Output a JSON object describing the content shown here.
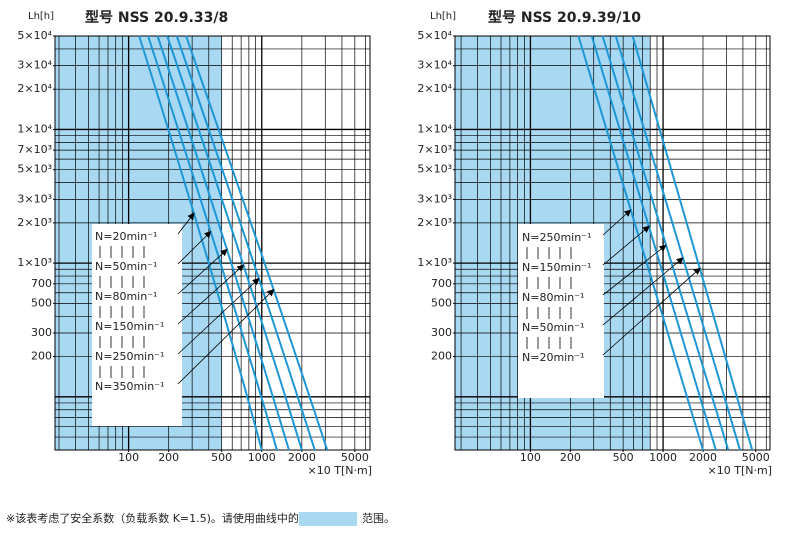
{
  "chart_data": [
    {
      "type": "line",
      "title": "型号 NSS 20.9.33/8",
      "ylabel": "Lh[h]",
      "xlabel": "×10 T[N·m]",
      "log_scale": true,
      "xlim": [
        28,
        6500
      ],
      "ylim": [
        40,
        50000
      ],
      "xticks": [
        100,
        200,
        500,
        1000,
        2000,
        5000
      ],
      "yticks": [
        {
          "value": 50000,
          "label": "5×10⁴"
        },
        {
          "value": 30000,
          "label": "3×10⁴"
        },
        {
          "value": 20000,
          "label": "2×10⁴"
        },
        {
          "value": 10000,
          "label": "1×10⁴"
        },
        {
          "value": 7000,
          "label": "7×10³"
        },
        {
          "value": 5000,
          "label": "5×10³"
        },
        {
          "value": 3000,
          "label": "3×10³"
        },
        {
          "value": 2000,
          "label": "2×10³"
        },
        {
          "value": 1000,
          "label": "1×10³"
        },
        700,
        500,
        300,
        200
      ],
      "xgrid": [
        30,
        40,
        50,
        60,
        70,
        80,
        90,
        100,
        200,
        300,
        400,
        500,
        600,
        700,
        800,
        900,
        1000,
        2000,
        3000,
        4000,
        5000,
        6000
      ],
      "ygrid": [
        40,
        50,
        60,
        70,
        80,
        90,
        100,
        200,
        300,
        400,
        500,
        600,
        700,
        800,
        900,
        1000,
        2000,
        3000,
        4000,
        5000,
        6000,
        7000,
        8000,
        9000,
        10000,
        20000,
        30000,
        40000,
        50000
      ],
      "shade_color": "#a8d8f2",
      "shade_xlim": [
        28,
        500
      ],
      "series": [
        {
          "name": "N=20min⁻¹",
          "color": "#1d97d5",
          "x": [
            120,
            400,
            1000
          ],
          "values": [
            50000,
            1000,
            40
          ]
        },
        {
          "name": "N=50min⁻¹",
          "color": "#1d97d5",
          "x": [
            140,
            490,
            1300
          ],
          "values": [
            50000,
            1000,
            40
          ]
        },
        {
          "name": "N=80min⁻¹",
          "color": "#1d97d5",
          "x": [
            165,
            590,
            1600
          ],
          "values": [
            50000,
            1000,
            40
          ]
        },
        {
          "name": "N=150min⁻¹",
          "color": "#1d97d5",
          "x": [
            195,
            720,
            2000
          ],
          "values": [
            50000,
            1000,
            40
          ]
        },
        {
          "name": "N=250min⁻¹",
          "color": "#1d97d5",
          "x": [
            230,
            870,
            2500
          ],
          "values": [
            50000,
            1000,
            40
          ]
        },
        {
          "name": "N=350min⁻¹",
          "color": "#1d97d5",
          "x": [
            270,
            1050,
            3100
          ],
          "values": [
            50000,
            1000,
            40
          ]
        }
      ]
    },
    {
      "type": "line",
      "title": "型号 NSS 20.9.39/10",
      "ylabel": "Lh[h]",
      "xlabel": "×10 T[N·m]",
      "log_scale": true,
      "xlim": [
        27,
        6400
      ],
      "ylim": [
        40,
        50000
      ],
      "xticks": [
        100,
        200,
        500,
        1000,
        2000,
        5000
      ],
      "yticks": [
        {
          "value": 50000,
          "label": "5×10⁴"
        },
        {
          "value": 30000,
          "label": "3×10⁴"
        },
        {
          "value": 20000,
          "label": "2×10⁴"
        },
        {
          "value": 10000,
          "label": "1×10⁴"
        },
        {
          "value": 7000,
          "label": "7×10³"
        },
        {
          "value": 5000,
          "label": "5×10³"
        },
        {
          "value": 3000,
          "label": "3×10³"
        },
        {
          "value": 2000,
          "label": "2×10³"
        },
        {
          "value": 1000,
          "label": "1×10³"
        },
        700,
        500,
        300,
        200
      ],
      "xgrid": [
        30,
        40,
        50,
        60,
        70,
        80,
        90,
        100,
        200,
        300,
        400,
        500,
        600,
        700,
        800,
        900,
        1000,
        2000,
        3000,
        4000,
        5000,
        6000
      ],
      "ygrid": [
        40,
        50,
        60,
        70,
        80,
        90,
        100,
        200,
        300,
        400,
        500,
        600,
        700,
        800,
        900,
        1000,
        2000,
        3000,
        4000,
        5000,
        6000,
        7000,
        8000,
        9000,
        10000,
        20000,
        30000,
        40000,
        50000
      ],
      "shade_color": "#a8d8f2",
      "shade_xlim": [
        27,
        800
      ],
      "series": [
        {
          "name": "N=250min⁻¹",
          "color": "#1d97d5",
          "x": [
            230,
            750,
            2000
          ],
          "values": [
            50000,
            1000,
            40
          ]
        },
        {
          "name": "N=150min⁻¹",
          "color": "#1d97d5",
          "x": [
            290,
            950,
            2500
          ],
          "values": [
            50000,
            1000,
            40
          ]
        },
        {
          "name": "N=80min⁻¹",
          "color": "#1d97d5",
          "x": [
            350,
            1150,
            3100
          ],
          "values": [
            50000,
            1000,
            40
          ]
        },
        {
          "name": "N=50min⁻¹",
          "color": "#1d97d5",
          "x": [
            440,
            1450,
            3800
          ],
          "values": [
            50000,
            1000,
            40
          ]
        },
        {
          "name": "N=20min⁻¹",
          "color": "#1d97d5",
          "x": [
            590,
            1850,
            4700
          ],
          "values": [
            50000,
            1000,
            40
          ]
        }
      ]
    }
  ],
  "footnote": {
    "text": "※该表考虑了安全系数（负载系数 K=1.5)。请使用曲线中的",
    "swatch_color": "#a8d8f2",
    "after": "范围。"
  }
}
